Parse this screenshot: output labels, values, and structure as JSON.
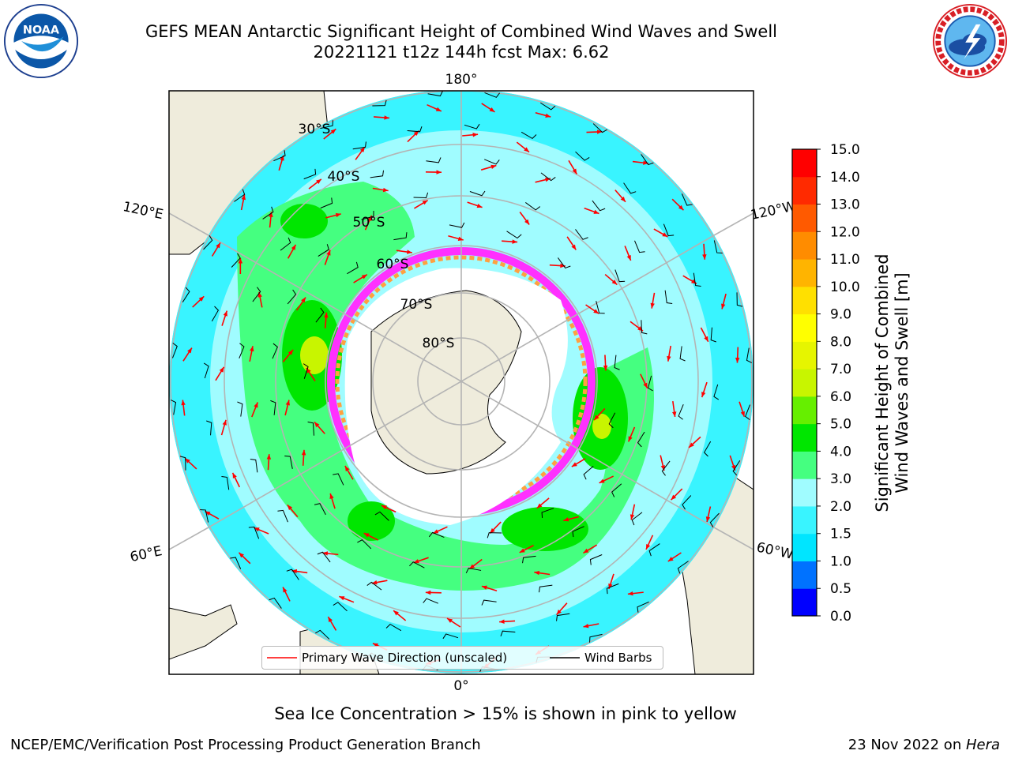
{
  "header": {
    "title_line1": "GEFS MEAN Antarctic Significant Height of Combined Wind Waves and Swell",
    "title_line2": "20221121 t12z 144h fcst   Max: 6.62"
  },
  "logos": {
    "left": {
      "icon": "noaa-logo",
      "text": "NOAA",
      "ring_text": "NATIONAL OCEANIC AND ATMOSPHERIC ADMINISTRATION · U.S. DEPARTMENT OF COMMERCE"
    },
    "right": {
      "icon": "nws-logo",
      "ring_text": "NATIONAL WEATHER SERVICE"
    }
  },
  "map": {
    "projection": "south-polar-stereographic",
    "lon_labels": {
      "top": "180°",
      "bottom": "0°",
      "left_upper": "120°E",
      "left_lower": "60°E",
      "right_upper": "120°W",
      "right_lower": "60°W"
    },
    "lat_labels": [
      "30°S",
      "40°S",
      "50°S",
      "60°S",
      "70°S",
      "80°S"
    ],
    "colors": {
      "land": "#efecdc",
      "ice_land": "#ffffff",
      "grid": "#b4b4b4",
      "arrow": "#ff0000",
      "barb": "#000000"
    }
  },
  "legend": {
    "wave_label": "Primary Wave Direction (unscaled)",
    "barb_label": "Wind Barbs",
    "wave_color": "#ff0000",
    "barb_color": "#000000"
  },
  "colorbar": {
    "label_line1": "Significant Height of Combined",
    "label_line2": "Wind Waves and Swell [m]",
    "ticks": [
      "0.0",
      "0.5",
      "1.0",
      "1.5",
      "2.0",
      "3.0",
      "4.0",
      "5.0",
      "6.0",
      "7.0",
      "8.0",
      "9.0",
      "10.0",
      "11.0",
      "12.0",
      "13.0",
      "14.0",
      "15.0"
    ],
    "colors": [
      "#0000ff",
      "#0072ff",
      "#00e5ff",
      "#39f4ff",
      "#a0fcff",
      "#45ff80",
      "#00e600",
      "#66ef00",
      "#c8f500",
      "#e6f500",
      "#ffff00",
      "#ffe000",
      "#ffb400",
      "#ff8c00",
      "#ff5a00",
      "#ff2a00",
      "#ff0000"
    ]
  },
  "footer": {
    "note": "Sea Ice Concentration > 15% is shown in pink to yellow",
    "credit": "NCEP/EMC/Verification Post Processing Product Generation Branch",
    "date_prefix": "23 Nov 2022 on ",
    "date_machine": "Hera"
  }
}
